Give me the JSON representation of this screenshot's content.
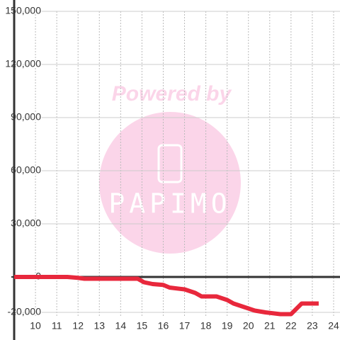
{
  "chart_data": {
    "type": "line",
    "watermark": {
      "title": "Powered by",
      "brand": "PAPIMO"
    },
    "x": [
      9,
      11.5,
      12,
      12.3,
      14.8,
      15.1,
      15.5,
      16,
      16.3,
      17,
      17.5,
      17.8,
      18.5,
      19,
      19.3,
      19.8,
      20.3,
      20.8,
      21.5,
      22,
      22.5,
      23.3
    ],
    "series": [
      {
        "color": "#e8283c",
        "values": [
          0,
          0,
          -500,
          -1000,
          -1000,
          -3000,
          -4000,
          -4500,
          -6000,
          -7000,
          -9000,
          -11000,
          -11000,
          -13000,
          -15000,
          -17000,
          -19000,
          -20000,
          -21000,
          -21000,
          -15000,
          -15000
        ]
      }
    ],
    "xlim": [
      9,
      24.3
    ],
    "xticks": [
      10,
      11,
      12,
      13,
      14,
      15,
      16,
      17,
      18,
      19,
      20,
      21,
      22,
      23,
      24
    ],
    "ylim": [
      -20000,
      150000
    ],
    "yticks": [
      {
        "value": -20000,
        "label": "-20,000"
      },
      0,
      {
        "value": 30000,
        "label": "30,000"
      },
      {
        "value": 60000,
        "label": "60,000"
      },
      {
        "value": 90000,
        "label": "90,000"
      },
      {
        "value": 120000,
        "label": "120,000"
      },
      {
        "value": 150000,
        "label": "150,000"
      }
    ],
    "grid": true
  }
}
